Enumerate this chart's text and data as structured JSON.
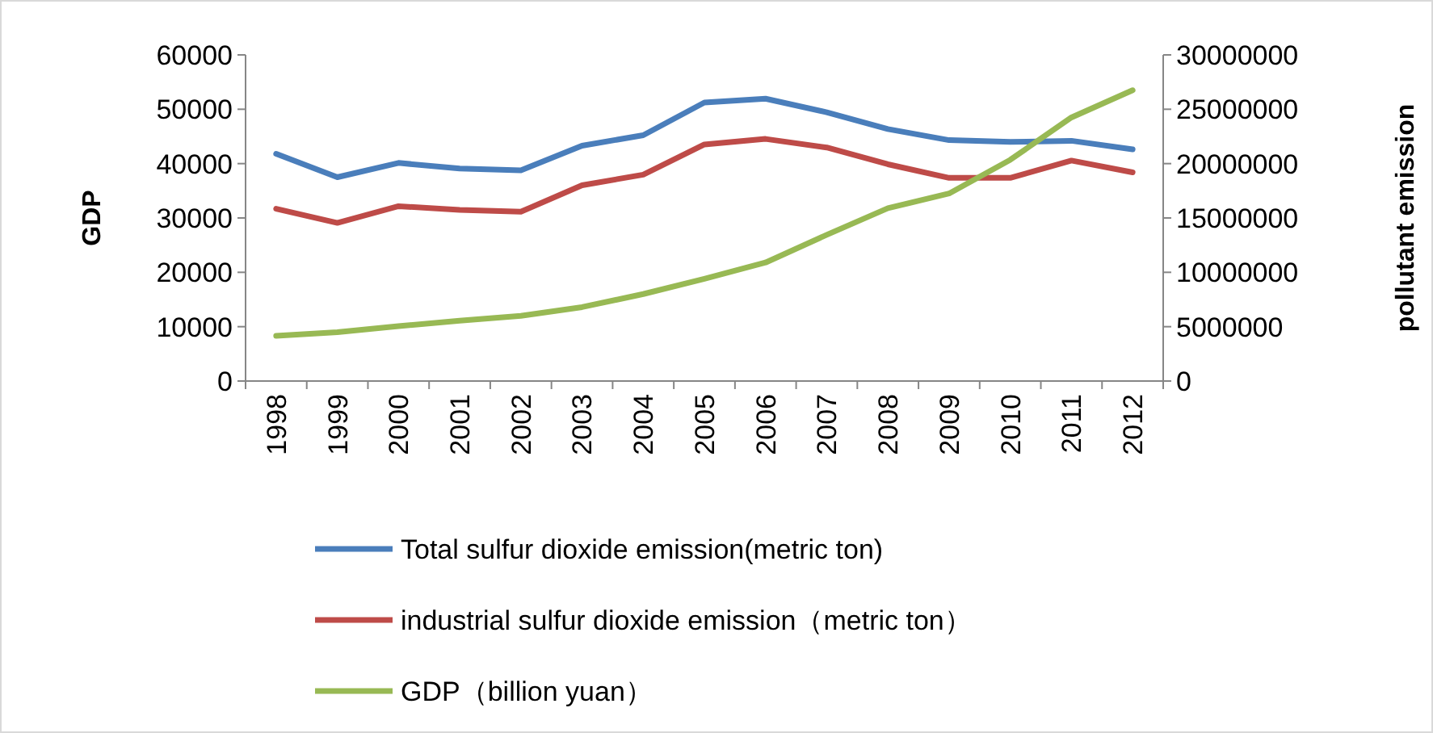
{
  "chart_data": {
    "type": "line",
    "ylabel": "GDP",
    "y2label": "pollutant emission",
    "categories": [
      "1998",
      "1999",
      "2000",
      "2001",
      "2002",
      "2003",
      "2004",
      "2005",
      "2006",
      "2007",
      "2008",
      "2009",
      "2010",
      "2011",
      "2012"
    ],
    "series": [
      {
        "name": "Total sulfur dioxide emission(metric ton)",
        "color": "#4a7ebb",
        "axis": "y2",
        "values": [
          20900000,
          18750000,
          20060000,
          19550000,
          19380000,
          21650000,
          22610000,
          25620000,
          25970000,
          24720000,
          23180000,
          22160000,
          21990000,
          22100000,
          21310000
        ]
      },
      {
        "name": "industrial sulfur dioxide emission（metric ton）",
        "color": "#be4b48",
        "axis": "y2",
        "values": [
          15850000,
          14550000,
          16080000,
          15740000,
          15570000,
          18010000,
          18980000,
          21760000,
          22270000,
          21480000,
          19940000,
          18690000,
          18690000,
          20280000,
          19200000
        ]
      },
      {
        "name": "GDP（billion yuan）",
        "color": "#98b954",
        "values": [
          8300,
          9000,
          10100,
          11100,
          12000,
          13600,
          16000,
          18800,
          21800,
          26900,
          31800,
          34500,
          40700,
          48500,
          53500
        ]
      }
    ],
    "ylim": [
      0,
      60000
    ],
    "yticks": [
      0,
      10000,
      20000,
      30000,
      40000,
      50000,
      60000
    ],
    "y2lim": [
      0,
      30000000
    ],
    "y2ticks": [
      0,
      5000000,
      10000000,
      15000000,
      20000000,
      25000000,
      30000000
    ],
    "grid": false,
    "legend": "bottom",
    "marker": "none",
    "line_style": "solid"
  }
}
